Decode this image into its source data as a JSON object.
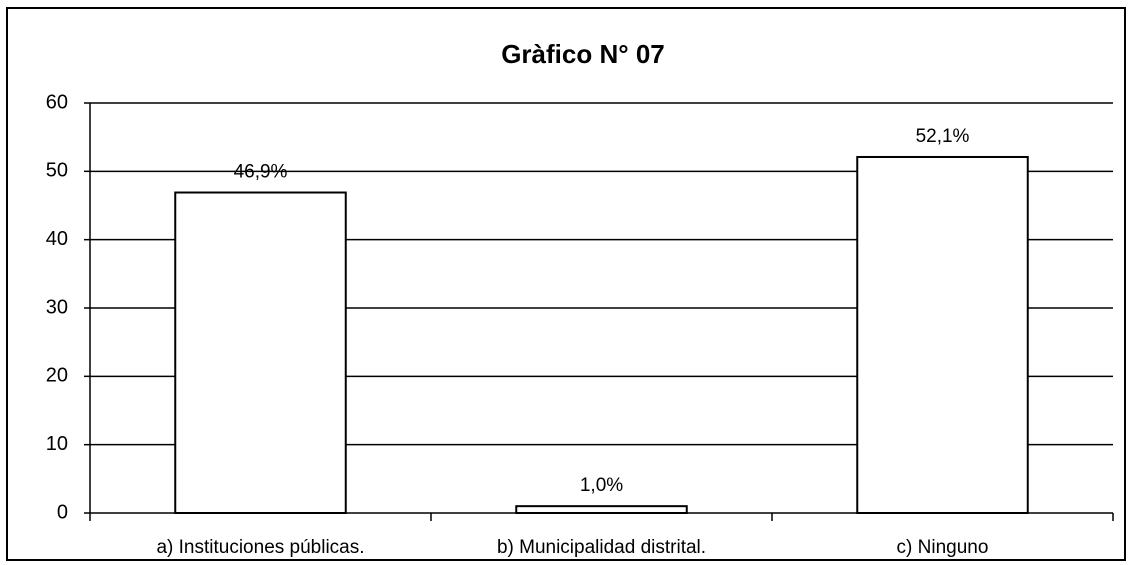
{
  "chart_data": {
    "type": "bar",
    "title": "Gràfico N° 07",
    "categories": [
      "a) Instituciones públicas.",
      "b)  Municipalidad distrital.",
      "c) Ninguno"
    ],
    "values": [
      46.9,
      1.0,
      52.1
    ],
    "value_labels": [
      "46,9%",
      "1,0%",
      "52,1%"
    ],
    "color": "#ffffff",
    "ylim": [
      0,
      60
    ],
    "yticks": [
      0,
      10,
      20,
      30,
      40,
      50,
      60
    ],
    "grid": true
  }
}
